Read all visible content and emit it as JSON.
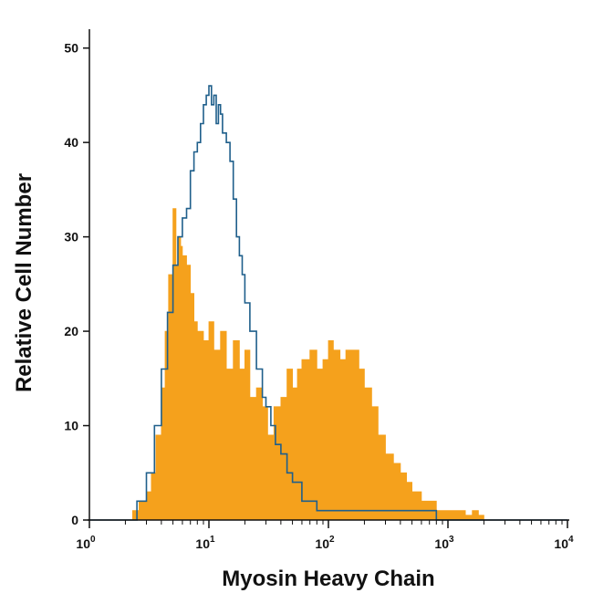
{
  "chart_data": {
    "type": "area",
    "title": "",
    "xlabel": "Myosin Heavy Chain",
    "ylabel": "Relative Cell Number",
    "x_scale": "log",
    "xlim": [
      1,
      10000
    ],
    "ylim": [
      0,
      52
    ],
    "x_ticks": [
      {
        "value": 1,
        "base": "10",
        "exp": "0"
      },
      {
        "value": 10,
        "base": "10",
        "exp": "1"
      },
      {
        "value": 100,
        "base": "10",
        "exp": "2"
      },
      {
        "value": 1000,
        "base": "10",
        "exp": "3"
      },
      {
        "value": 10000,
        "base": "10",
        "exp": "4"
      }
    ],
    "y_ticks": [
      "0",
      "10",
      "20",
      "30",
      "40",
      "50"
    ],
    "grid": false,
    "legend": "none",
    "series": [
      {
        "style": "filled",
        "color": "#F5A11C",
        "x": [
          1.0,
          2.0,
          2.3,
          2.6,
          3.0,
          3.3,
          3.6,
          4.0,
          4.3,
          4.6,
          5.0,
          5.3,
          5.5,
          5.8,
          6.0,
          6.5,
          7.0,
          7.5,
          8.0,
          9.0,
          10.0,
          11.0,
          12.5,
          14.0,
          16.0,
          18.0,
          20.0,
          22.0,
          25.0,
          28.0,
          31.0,
          35.0,
          40.0,
          45.0,
          50.0,
          55.0,
          60.0,
          70.0,
          80.0,
          90.0,
          100.0,
          110.0,
          125.0,
          140.0,
          160.0,
          180.0,
          200.0,
          230.0,
          260.0,
          300.0,
          350.0,
          400.0,
          450.0,
          500.0,
          600.0,
          700.0,
          800.0,
          900.0,
          1000.0,
          1200.0,
          1400.0,
          1600.0,
          1800.0,
          2000.0,
          10000.0
        ],
        "values": [
          0,
          0,
          1,
          2,
          3,
          5,
          9,
          14,
          20,
          26,
          33,
          27,
          30,
          29,
          28,
          27,
          24,
          21,
          20,
          19,
          21,
          18,
          20,
          16,
          19,
          16,
          18,
          13,
          14,
          12,
          9,
          12,
          13,
          16,
          14,
          16,
          17,
          18,
          16,
          17,
          19,
          18,
          17,
          18,
          18,
          16,
          14,
          12,
          9,
          7,
          6,
          5,
          4,
          3,
          2,
          2,
          1,
          1,
          1,
          1,
          0.5,
          1,
          0.5,
          0,
          0
        ]
      },
      {
        "style": "outline",
        "color": "#1F5F8B",
        "x": [
          1.0,
          2.0,
          2.5,
          3.0,
          3.5,
          4.0,
          4.5,
          5.0,
          5.5,
          6.0,
          6.5,
          7.0,
          7.5,
          8.0,
          8.5,
          9.0,
          9.5,
          10.0,
          10.5,
          11.0,
          11.5,
          12.0,
          12.5,
          13.0,
          14.0,
          15.0,
          16.0,
          17.0,
          18.0,
          19.0,
          20.0,
          22.0,
          25.0,
          28.0,
          30.0,
          33.0,
          36.0,
          40.0,
          45.0,
          50.0,
          60.0,
          70.0,
          80.0,
          100.0,
          150.0,
          200.0,
          300.0,
          400.0,
          600.0,
          800.0,
          1000.0,
          10000.0
        ],
        "values": [
          0,
          0,
          2,
          5,
          10,
          16,
          22,
          27,
          30,
          32,
          33,
          37,
          39,
          40,
          42,
          44,
          45,
          46,
          44,
          45,
          42,
          44,
          43,
          41,
          40,
          38,
          34,
          30,
          28,
          26,
          23,
          20,
          16,
          13,
          12,
          10,
          8,
          7,
          5,
          4,
          2,
          2,
          1,
          1,
          1,
          1,
          1,
          1,
          1,
          0,
          0,
          0
        ]
      }
    ]
  }
}
